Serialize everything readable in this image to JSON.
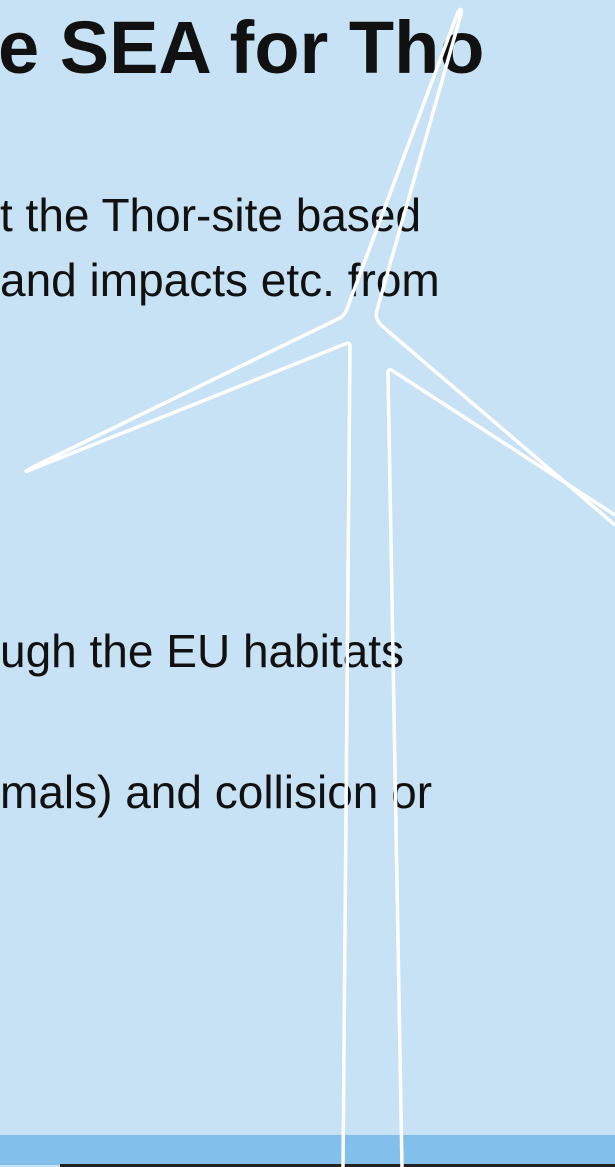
{
  "title": "e SEA for Tho",
  "lines": [
    "t the Thor-site based",
    "and impacts etc. from",
    "ugh the EU habitats",
    "mals) and collision or"
  ]
}
